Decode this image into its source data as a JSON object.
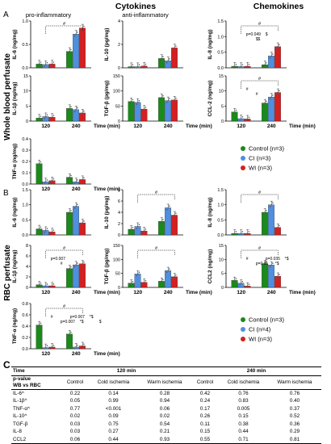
{
  "figure": {
    "column_headers": {
      "cytokines": "Cytokines",
      "chemokines": "Chemokines",
      "pro": "pro-inflammatory",
      "anti": "anti-inflammatory"
    },
    "section_labels": {
      "A": "A",
      "B": "B",
      "C": "C"
    },
    "row_labels": {
      "A": "Whole blood perfusate",
      "B": "RBC perfusate"
    },
    "x_axis_label": "Time (min)",
    "time_ticks": [
      "120",
      "240"
    ],
    "colors": {
      "control": "#1a8a1a",
      "cold": "#4f8fe0",
      "warm": "#d42020"
    },
    "legend_A": [
      "Control (n=3)",
      "CI (n=3)",
      "WI (n=3)"
    ],
    "legend_B": [
      "Control (n=3)",
      "CI (n=4)",
      "WI (n=3)"
    ]
  },
  "chart_data": [
    {
      "id": "A-IL6",
      "type": "bar",
      "ylabel": "IL-6 (ng/mg)",
      "ylim": [
        0,
        1.0
      ],
      "yticks": [
        "0.0",
        "0.5",
        "1.0"
      ],
      "x": [
        "120",
        "240"
      ],
      "series": [
        {
          "name": "Control",
          "values": [
            0.08,
            0.35
          ]
        },
        {
          "name": "CI",
          "values": [
            0.07,
            0.72
          ]
        },
        {
          "name": "WI",
          "values": [
            0.08,
            0.85
          ]
        }
      ],
      "annotations": [
        "#"
      ]
    },
    {
      "id": "A-IL10",
      "type": "bar",
      "ylabel": "IL-10 (pg/mg)",
      "ylim": [
        0,
        4
      ],
      "yticks": [
        "0",
        "2",
        "4"
      ],
      "x": [
        "120",
        "240"
      ],
      "series": [
        {
          "name": "Control",
          "values": [
            0.1,
            0.8
          ]
        },
        {
          "name": "CI",
          "values": [
            0.1,
            0.6
          ]
        },
        {
          "name": "WI",
          "values": [
            0.15,
            1.7
          ]
        }
      ]
    },
    {
      "id": "A-IL8",
      "type": "bar",
      "ylabel": "IL-8 (ng/mg)",
      "ylim": [
        0,
        1.5
      ],
      "yticks": [
        "0.0",
        "0.5",
        "1.0",
        "1.5"
      ],
      "x": [
        "120",
        "240"
      ],
      "series": [
        {
          "name": "Control",
          "values": [
            0.05,
            0.1
          ]
        },
        {
          "name": "CI",
          "values": [
            0.04,
            0.38
          ]
        },
        {
          "name": "WI",
          "values": [
            0.05,
            0.68
          ]
        }
      ],
      "annotations": [
        "#",
        "p=0.049",
        "$$",
        "$"
      ]
    },
    {
      "id": "A-IL1b",
      "type": "bar",
      "ylabel": "IL-1β (ng/mg)",
      "ylim": [
        0,
        15
      ],
      "yticks": [
        "0",
        "5",
        "10",
        "15"
      ],
      "x": [
        "120",
        "240"
      ],
      "series": [
        {
          "name": "Control",
          "values": [
            1.0,
            4.2
          ]
        },
        {
          "name": "CI",
          "values": [
            1.5,
            3.8
          ]
        },
        {
          "name": "WI",
          "values": [
            1.3,
            2.7
          ]
        }
      ]
    },
    {
      "id": "A-TGFb",
      "type": "bar",
      "ylabel": "TGF-β (pg/mg)",
      "ylim": [
        0,
        150
      ],
      "yticks": [
        "0",
        "50",
        "100",
        "150"
      ],
      "x": [
        "120",
        "240"
      ],
      "series": [
        {
          "name": "Control",
          "values": [
            65,
            78
          ]
        },
        {
          "name": "CI",
          "values": [
            62,
            68
          ]
        },
        {
          "name": "WI",
          "values": [
            40,
            70
          ]
        }
      ]
    },
    {
      "id": "A-CCL2",
      "type": "bar",
      "ylabel": "CCL-2 (ng/mg)",
      "ylim": [
        0,
        15
      ],
      "yticks": [
        "0",
        "5",
        "10",
        "15"
      ],
      "x": [
        "120",
        "240"
      ],
      "series": [
        {
          "name": "Control",
          "values": [
            3.0,
            6.0
          ]
        },
        {
          "name": "CI",
          "values": [
            0.8,
            8.0
          ]
        },
        {
          "name": "WI",
          "values": [
            0.7,
            9.5
          ]
        }
      ],
      "annotations": [
        "#",
        "#",
        "#"
      ]
    },
    {
      "id": "A-TNFa",
      "type": "bar",
      "ylabel": "TNF-α (ng/mg)",
      "ylim": [
        0,
        0.4
      ],
      "yticks": [
        "0.0",
        "0.1",
        "0.2",
        "0.3",
        "0.4"
      ],
      "x": [
        "120",
        "240"
      ],
      "series": [
        {
          "name": "Control",
          "values": [
            0.18,
            0.06
          ]
        },
        {
          "name": "CI",
          "values": [
            0.02,
            0.02
          ]
        },
        {
          "name": "WI",
          "values": [
            0.03,
            0.04
          ]
        }
      ]
    },
    {
      "id": "B-IL6",
      "type": "bar",
      "ylabel": "IL-6 (ng/mg)",
      "ylim": [
        0,
        1.5
      ],
      "yticks": [
        "0.0",
        "0.5",
        "1.0",
        "1.5"
      ],
      "x": [
        "120",
        "240"
      ],
      "series": [
        {
          "name": "Control",
          "values": [
            0.2,
            0.75
          ]
        },
        {
          "name": "CI",
          "values": [
            0.15,
            0.95
          ]
        },
        {
          "name": "WI",
          "values": [
            0.1,
            0.4
          ]
        }
      ]
    },
    {
      "id": "B-IL10",
      "type": "bar",
      "ylabel": "IL-10 (pg/mg)",
      "ylim": [
        0,
        8
      ],
      "yticks": [
        "0",
        "2",
        "4",
        "6",
        "8"
      ],
      "x": [
        "120",
        "240"
      ],
      "series": [
        {
          "name": "Control",
          "values": [
            1.0,
            2.4
          ]
        },
        {
          "name": "CI",
          "values": [
            1.5,
            4.8
          ]
        },
        {
          "name": "WI",
          "values": [
            0.7,
            3.5
          ]
        }
      ],
      "annotations": [
        "#"
      ]
    },
    {
      "id": "B-IL8",
      "type": "bar",
      "ylabel": "IL-8 (ng/mg)",
      "ylim": [
        0,
        1.5
      ],
      "yticks": [
        "0.0",
        "0.5",
        "1.0",
        "1.5"
      ],
      "x": [
        "120",
        "240"
      ],
      "series": [
        {
          "name": "Control",
          "values": [
            0.05,
            0.75
          ]
        },
        {
          "name": "CI",
          "values": [
            0.05,
            1.0
          ]
        },
        {
          "name": "WI",
          "values": [
            0.05,
            0.25
          ]
        }
      ],
      "annotations": [
        "#"
      ]
    },
    {
      "id": "B-IL1b",
      "type": "bar",
      "ylabel": "IL-1β (ng/mg)",
      "ylim": [
        0,
        8
      ],
      "yticks": [
        "0",
        "2",
        "4",
        "6",
        "8"
      ],
      "x": [
        "120",
        "240"
      ],
      "series": [
        {
          "name": "Control",
          "values": [
            0.5,
            3.6
          ]
        },
        {
          "name": "CI",
          "values": [
            0.3,
            4.3
          ]
        },
        {
          "name": "WI",
          "values": [
            0.3,
            4.5
          ]
        }
      ],
      "annotations": [
        "#",
        "p=0.007",
        "#"
      ]
    },
    {
      "id": "B-TGFb",
      "type": "bar",
      "ylabel": "TGF-β (pg/mg)",
      "ylim": [
        0,
        150
      ],
      "yticks": [
        "0",
        "50",
        "100",
        "150"
      ],
      "x": [
        "120",
        "240"
      ],
      "series": [
        {
          "name": "Control",
          "values": [
            15,
            22
          ]
        },
        {
          "name": "CI",
          "values": [
            48,
            60
          ]
        },
        {
          "name": "WI",
          "values": [
            18,
            38
          ]
        }
      ],
      "annotations": [
        "#"
      ]
    },
    {
      "id": "B-CCL2",
      "type": "bar",
      "ylabel": "CCL2 (ng/mg)",
      "ylim": [
        0,
        15
      ],
      "yticks": [
        "0",
        "5",
        "10",
        "15"
      ],
      "x": [
        "120",
        "240"
      ],
      "series": [
        {
          "name": "Control",
          "values": [
            2.5,
            8.5
          ]
        },
        {
          "name": "CI",
          "values": [
            1.5,
            8.0
          ]
        },
        {
          "name": "WI",
          "values": [
            0.5,
            4.0
          ]
        }
      ],
      "annotations": [
        "#",
        "#",
        "p=0.01",
        "p=0.035",
        "*$",
        "*$"
      ]
    },
    {
      "id": "B-TNFa",
      "type": "bar",
      "ylabel": "TNF-α (ng/mg)",
      "ylim": [
        0,
        0.8
      ],
      "yticks": [
        "0.0",
        "0.2",
        "0.4",
        "0.6",
        "0.8"
      ],
      "x": [
        "120",
        "240"
      ],
      "series": [
        {
          "name": "Control",
          "values": [
            0.42,
            0.26
          ]
        },
        {
          "name": "CI",
          "values": [
            0.02,
            0.03
          ]
        },
        {
          "name": "WI",
          "values": [
            0.03,
            0.05
          ]
        }
      ],
      "annotations": [
        "#",
        "#",
        "p=0.007",
        "p=0.007",
        "*$",
        "*$",
        "$"
      ]
    }
  ],
  "table": {
    "time_label": "Time",
    "time_120": "120 min",
    "time_240": "240 min",
    "pvalue_label": "p-value",
    "wb_vs_rbc": "WB vs RBC",
    "col_headers": [
      "Control",
      "Cold ischemia",
      "Warm ischemia",
      "Control",
      "Cold ischemia",
      "Warm ischemia"
    ],
    "rows": [
      {
        "label": "IL-6^",
        "values": [
          "0.22",
          "0.14",
          "0.28",
          "0.42",
          "0.76",
          "0.76"
        ]
      },
      {
        "label": "IL-1β^",
        "values": [
          "0.05",
          "0.99",
          "0.94",
          "0.24",
          "0.83",
          "0.40"
        ]
      },
      {
        "label": "TNF-α^",
        "values": [
          "0.77",
          "<0.001",
          "0.06",
          "0.17",
          "0.005",
          "0.37"
        ]
      },
      {
        "label": "IL-10^",
        "values": [
          "0.02",
          "0.09",
          "0.02",
          "0.26",
          "0.15",
          "0.52"
        ]
      },
      {
        "label": "TGF-β",
        "values": [
          "0.03",
          "0.75",
          "0.54",
          "0.11",
          "0.38",
          "0.36"
        ]
      },
      {
        "label": "IL-8",
        "values": [
          "0.03",
          "0.27",
          "0.21",
          "0.15",
          "0.44",
          "0.29"
        ]
      },
      {
        "label": "CCL2",
        "values": [
          "0.06",
          "0.44",
          "0.93",
          "0.55",
          "0.71",
          "0.81"
        ]
      }
    ]
  }
}
